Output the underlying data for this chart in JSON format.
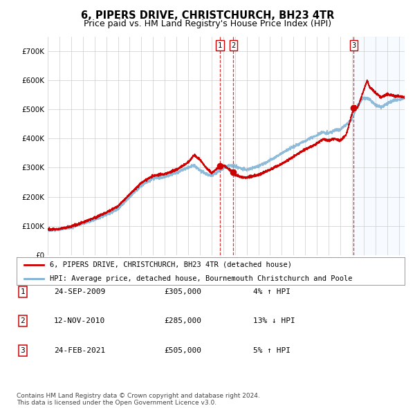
{
  "title": "6, PIPERS DRIVE, CHRISTCHURCH, BH23 4TR",
  "subtitle": "Price paid vs. HM Land Registry's House Price Index (HPI)",
  "x_start_year": 1995,
  "x_end_year": 2025,
  "y_ticks": [
    0,
    100000,
    200000,
    300000,
    400000,
    500000,
    600000,
    700000
  ],
  "y_labels": [
    "£0",
    "£100K",
    "£200K",
    "£300K",
    "£400K",
    "£500K",
    "£600K",
    "£700K"
  ],
  "sale_dates": [
    "2009-09-24",
    "2010-11-12",
    "2021-02-24"
  ],
  "sale_year_floats": [
    2009.73,
    2010.87,
    2021.15
  ],
  "sale_prices": [
    305000,
    285000,
    505000
  ],
  "sale_labels": [
    "1",
    "2",
    "3"
  ],
  "legend_house": "6, PIPERS DRIVE, CHRISTCHURCH, BH23 4TR (detached house)",
  "legend_hpi": "HPI: Average price, detached house, Bournemouth Christchurch and Poole",
  "table_rows": [
    [
      "1",
      "24-SEP-2009",
      "£305,000",
      "4% ↑ HPI"
    ],
    [
      "2",
      "12-NOV-2010",
      "£285,000",
      "13% ↓ HPI"
    ],
    [
      "3",
      "24-FEB-2021",
      "£505,000",
      "5% ↑ HPI"
    ]
  ],
  "footer": "Contains HM Land Registry data © Crown copyright and database right 2024.\nThis data is licensed under the Open Government Licence v3.0.",
  "house_line_color": "#cc0000",
  "hpi_line_color": "#7bafd4",
  "sale_marker_color": "#cc0000",
  "dashed_line_color": "#cc0000",
  "grid_color": "#cccccc",
  "bg_color": "#ffffff",
  "shaded_bg_color": "#ddeeff",
  "title_fontsize": 10.5,
  "subtitle_fontsize": 9,
  "legend_fontsize": 7.5,
  "table_fontsize": 8,
  "footer_fontsize": 6.5
}
